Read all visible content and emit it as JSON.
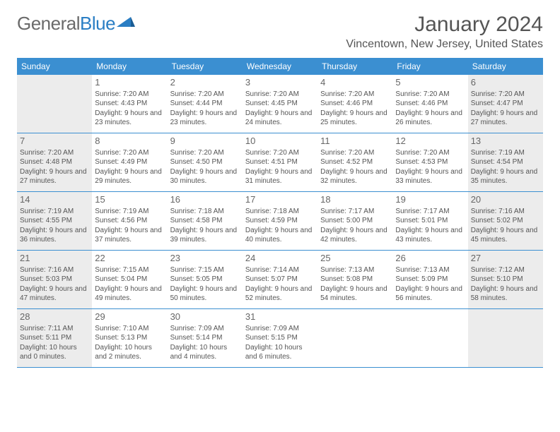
{
  "logo": {
    "part1": "General",
    "part2": "Blue"
  },
  "title": "January 2024",
  "location": "Vincentown, New Jersey, United States",
  "weekdays": [
    "Sunday",
    "Monday",
    "Tuesday",
    "Wednesday",
    "Thursday",
    "Friday",
    "Saturday"
  ],
  "colors": {
    "header_bg": "#3b8fd1",
    "header_text": "#ffffff",
    "shaded_bg": "#ececec",
    "text": "#555555",
    "day_border": "#3b8fd1"
  },
  "weeks": [
    [
      {
        "num": "",
        "sunrise": "",
        "sunset": "",
        "daylight": "",
        "shaded": true
      },
      {
        "num": "1",
        "sunrise": "Sunrise: 7:20 AM",
        "sunset": "Sunset: 4:43 PM",
        "daylight": "Daylight: 9 hours and 23 minutes.",
        "shaded": false
      },
      {
        "num": "2",
        "sunrise": "Sunrise: 7:20 AM",
        "sunset": "Sunset: 4:44 PM",
        "daylight": "Daylight: 9 hours and 23 minutes.",
        "shaded": false
      },
      {
        "num": "3",
        "sunrise": "Sunrise: 7:20 AM",
        "sunset": "Sunset: 4:45 PM",
        "daylight": "Daylight: 9 hours and 24 minutes.",
        "shaded": false
      },
      {
        "num": "4",
        "sunrise": "Sunrise: 7:20 AM",
        "sunset": "Sunset: 4:46 PM",
        "daylight": "Daylight: 9 hours and 25 minutes.",
        "shaded": false
      },
      {
        "num": "5",
        "sunrise": "Sunrise: 7:20 AM",
        "sunset": "Sunset: 4:46 PM",
        "daylight": "Daylight: 9 hours and 26 minutes.",
        "shaded": false
      },
      {
        "num": "6",
        "sunrise": "Sunrise: 7:20 AM",
        "sunset": "Sunset: 4:47 PM",
        "daylight": "Daylight: 9 hours and 27 minutes.",
        "shaded": true
      }
    ],
    [
      {
        "num": "7",
        "sunrise": "Sunrise: 7:20 AM",
        "sunset": "Sunset: 4:48 PM",
        "daylight": "Daylight: 9 hours and 27 minutes.",
        "shaded": true
      },
      {
        "num": "8",
        "sunrise": "Sunrise: 7:20 AM",
        "sunset": "Sunset: 4:49 PM",
        "daylight": "Daylight: 9 hours and 29 minutes.",
        "shaded": false
      },
      {
        "num": "9",
        "sunrise": "Sunrise: 7:20 AM",
        "sunset": "Sunset: 4:50 PM",
        "daylight": "Daylight: 9 hours and 30 minutes.",
        "shaded": false
      },
      {
        "num": "10",
        "sunrise": "Sunrise: 7:20 AM",
        "sunset": "Sunset: 4:51 PM",
        "daylight": "Daylight: 9 hours and 31 minutes.",
        "shaded": false
      },
      {
        "num": "11",
        "sunrise": "Sunrise: 7:20 AM",
        "sunset": "Sunset: 4:52 PM",
        "daylight": "Daylight: 9 hours and 32 minutes.",
        "shaded": false
      },
      {
        "num": "12",
        "sunrise": "Sunrise: 7:20 AM",
        "sunset": "Sunset: 4:53 PM",
        "daylight": "Daylight: 9 hours and 33 minutes.",
        "shaded": false
      },
      {
        "num": "13",
        "sunrise": "Sunrise: 7:19 AM",
        "sunset": "Sunset: 4:54 PM",
        "daylight": "Daylight: 9 hours and 35 minutes.",
        "shaded": true
      }
    ],
    [
      {
        "num": "14",
        "sunrise": "Sunrise: 7:19 AM",
        "sunset": "Sunset: 4:55 PM",
        "daylight": "Daylight: 9 hours and 36 minutes.",
        "shaded": true
      },
      {
        "num": "15",
        "sunrise": "Sunrise: 7:19 AM",
        "sunset": "Sunset: 4:56 PM",
        "daylight": "Daylight: 9 hours and 37 minutes.",
        "shaded": false
      },
      {
        "num": "16",
        "sunrise": "Sunrise: 7:18 AM",
        "sunset": "Sunset: 4:58 PM",
        "daylight": "Daylight: 9 hours and 39 minutes.",
        "shaded": false
      },
      {
        "num": "17",
        "sunrise": "Sunrise: 7:18 AM",
        "sunset": "Sunset: 4:59 PM",
        "daylight": "Daylight: 9 hours and 40 minutes.",
        "shaded": false
      },
      {
        "num": "18",
        "sunrise": "Sunrise: 7:17 AM",
        "sunset": "Sunset: 5:00 PM",
        "daylight": "Daylight: 9 hours and 42 minutes.",
        "shaded": false
      },
      {
        "num": "19",
        "sunrise": "Sunrise: 7:17 AM",
        "sunset": "Sunset: 5:01 PM",
        "daylight": "Daylight: 9 hours and 43 minutes.",
        "shaded": false
      },
      {
        "num": "20",
        "sunrise": "Sunrise: 7:16 AM",
        "sunset": "Sunset: 5:02 PM",
        "daylight": "Daylight: 9 hours and 45 minutes.",
        "shaded": true
      }
    ],
    [
      {
        "num": "21",
        "sunrise": "Sunrise: 7:16 AM",
        "sunset": "Sunset: 5:03 PM",
        "daylight": "Daylight: 9 hours and 47 minutes.",
        "shaded": true
      },
      {
        "num": "22",
        "sunrise": "Sunrise: 7:15 AM",
        "sunset": "Sunset: 5:04 PM",
        "daylight": "Daylight: 9 hours and 49 minutes.",
        "shaded": false
      },
      {
        "num": "23",
        "sunrise": "Sunrise: 7:15 AM",
        "sunset": "Sunset: 5:05 PM",
        "daylight": "Daylight: 9 hours and 50 minutes.",
        "shaded": false
      },
      {
        "num": "24",
        "sunrise": "Sunrise: 7:14 AM",
        "sunset": "Sunset: 5:07 PM",
        "daylight": "Daylight: 9 hours and 52 minutes.",
        "shaded": false
      },
      {
        "num": "25",
        "sunrise": "Sunrise: 7:13 AM",
        "sunset": "Sunset: 5:08 PM",
        "daylight": "Daylight: 9 hours and 54 minutes.",
        "shaded": false
      },
      {
        "num": "26",
        "sunrise": "Sunrise: 7:13 AM",
        "sunset": "Sunset: 5:09 PM",
        "daylight": "Daylight: 9 hours and 56 minutes.",
        "shaded": false
      },
      {
        "num": "27",
        "sunrise": "Sunrise: 7:12 AM",
        "sunset": "Sunset: 5:10 PM",
        "daylight": "Daylight: 9 hours and 58 minutes.",
        "shaded": true
      }
    ],
    [
      {
        "num": "28",
        "sunrise": "Sunrise: 7:11 AM",
        "sunset": "Sunset: 5:11 PM",
        "daylight": "Daylight: 10 hours and 0 minutes.",
        "shaded": true
      },
      {
        "num": "29",
        "sunrise": "Sunrise: 7:10 AM",
        "sunset": "Sunset: 5:13 PM",
        "daylight": "Daylight: 10 hours and 2 minutes.",
        "shaded": false
      },
      {
        "num": "30",
        "sunrise": "Sunrise: 7:09 AM",
        "sunset": "Sunset: 5:14 PM",
        "daylight": "Daylight: 10 hours and 4 minutes.",
        "shaded": false
      },
      {
        "num": "31",
        "sunrise": "Sunrise: 7:09 AM",
        "sunset": "Sunset: 5:15 PM",
        "daylight": "Daylight: 10 hours and 6 minutes.",
        "shaded": false
      },
      {
        "num": "",
        "sunrise": "",
        "sunset": "",
        "daylight": "",
        "shaded": false
      },
      {
        "num": "",
        "sunrise": "",
        "sunset": "",
        "daylight": "",
        "shaded": false
      },
      {
        "num": "",
        "sunrise": "",
        "sunset": "",
        "daylight": "",
        "shaded": true
      }
    ]
  ]
}
